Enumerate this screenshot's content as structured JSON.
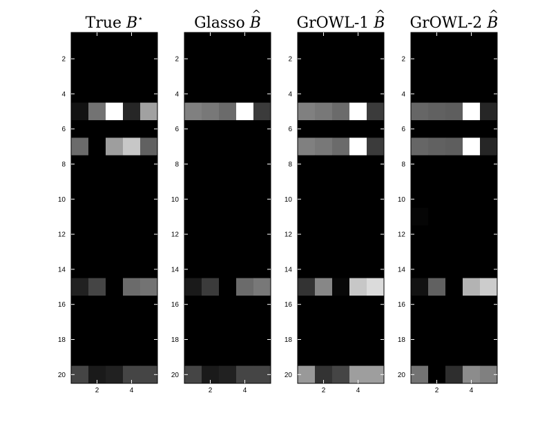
{
  "chart_data": [
    {
      "type": "heatmap",
      "title": "True B*",
      "title_text": "True ",
      "title_symbol": "B",
      "title_mark": "⋆",
      "title_mark_kind": "superscript",
      "xlim": [
        0.5,
        5.5
      ],
      "ylim": [
        20.5,
        0.5
      ],
      "x_ticks": [
        2,
        4
      ],
      "y_ticks": [
        2,
        4,
        6,
        8,
        10,
        12,
        14,
        16,
        18,
        20
      ],
      "colormap": "gray",
      "rows": 20,
      "cols": 5,
      "values": [
        [
          0,
          0,
          0,
          0,
          0
        ],
        [
          0,
          0,
          0,
          0,
          0
        ],
        [
          0,
          0,
          0,
          0,
          0
        ],
        [
          0,
          0,
          0,
          0,
          0
        ],
        [
          0.07,
          0.45,
          1.0,
          0.15,
          0.63
        ],
        [
          0,
          0,
          0,
          0,
          0
        ],
        [
          0.42,
          0.0,
          0.62,
          0.78,
          0.38
        ],
        [
          0,
          0,
          0,
          0,
          0
        ],
        [
          0,
          0,
          0,
          0,
          0
        ],
        [
          0,
          0,
          0,
          0,
          0
        ],
        [
          0,
          0,
          0,
          0,
          0
        ],
        [
          0,
          0,
          0,
          0,
          0
        ],
        [
          0,
          0,
          0,
          0,
          0
        ],
        [
          0,
          0,
          0,
          0,
          0
        ],
        [
          0.13,
          0.27,
          0.0,
          0.42,
          0.45
        ],
        [
          0,
          0,
          0,
          0,
          0
        ],
        [
          0,
          0,
          0,
          0,
          0
        ],
        [
          0,
          0,
          0,
          0,
          0
        ],
        [
          0,
          0,
          0,
          0,
          0
        ],
        [
          0.27,
          0.1,
          0.13,
          0.27,
          0.27
        ]
      ]
    },
    {
      "type": "heatmap",
      "title": "Glasso B̂",
      "title_text": "Glasso ",
      "title_symbol": "B",
      "title_mark": "^",
      "title_mark_kind": "hat",
      "xlim": [
        0.5,
        5.5
      ],
      "ylim": [
        20.5,
        0.5
      ],
      "x_ticks": [
        2,
        4
      ],
      "y_ticks": [
        2,
        4,
        6,
        8,
        10,
        12,
        14,
        16,
        18,
        20
      ],
      "colormap": "gray",
      "rows": 20,
      "cols": 5,
      "values": [
        [
          0,
          0,
          0,
          0,
          0
        ],
        [
          0,
          0,
          0,
          0,
          0
        ],
        [
          0,
          0,
          0,
          0,
          0
        ],
        [
          0,
          0,
          0,
          0,
          0
        ],
        [
          0.5,
          0.47,
          0.42,
          1.0,
          0.23
        ],
        [
          0,
          0,
          0,
          0,
          0
        ],
        [
          0,
          0,
          0,
          0,
          0
        ],
        [
          0,
          0,
          0,
          0,
          0
        ],
        [
          0,
          0,
          0,
          0,
          0
        ],
        [
          0,
          0,
          0,
          0,
          0
        ],
        [
          0,
          0,
          0,
          0,
          0
        ],
        [
          0,
          0,
          0,
          0,
          0
        ],
        [
          0,
          0,
          0,
          0,
          0
        ],
        [
          0,
          0,
          0,
          0,
          0
        ],
        [
          0.1,
          0.23,
          0.0,
          0.42,
          0.47
        ],
        [
          0,
          0,
          0,
          0,
          0
        ],
        [
          0,
          0,
          0,
          0,
          0
        ],
        [
          0,
          0,
          0,
          0,
          0
        ],
        [
          0,
          0,
          0,
          0,
          0
        ],
        [
          0.27,
          0.1,
          0.13,
          0.27,
          0.27
        ]
      ]
    },
    {
      "type": "heatmap",
      "title": "GrOWL-1 B̂",
      "title_text": "GrOWL-1 ",
      "title_symbol": "B",
      "title_mark": "^",
      "title_mark_kind": "hat",
      "xlim": [
        0.5,
        5.5
      ],
      "ylim": [
        20.5,
        0.5
      ],
      "x_ticks": [
        2,
        4
      ],
      "y_ticks": [
        2,
        4,
        6,
        8,
        10,
        12,
        14,
        16,
        18,
        20
      ],
      "colormap": "gray",
      "rows": 20,
      "cols": 5,
      "values": [
        [
          0,
          0,
          0,
          0,
          0
        ],
        [
          0,
          0,
          0,
          0,
          0
        ],
        [
          0,
          0,
          0,
          0,
          0
        ],
        [
          0,
          0,
          0,
          0,
          0
        ],
        [
          0.5,
          0.47,
          0.42,
          1.0,
          0.23
        ],
        [
          0,
          0,
          0,
          0,
          0
        ],
        [
          0.5,
          0.47,
          0.42,
          1.0,
          0.23
        ],
        [
          0,
          0,
          0,
          0,
          0
        ],
        [
          0,
          0,
          0,
          0,
          0
        ],
        [
          0,
          0,
          0,
          0,
          0
        ],
        [
          0,
          0,
          0,
          0,
          0
        ],
        [
          0,
          0,
          0,
          0,
          0
        ],
        [
          0,
          0,
          0,
          0,
          0
        ],
        [
          0,
          0,
          0,
          0,
          0
        ],
        [
          0.2,
          0.53,
          0.03,
          0.78,
          0.86
        ],
        [
          0,
          0,
          0,
          0,
          0
        ],
        [
          0,
          0,
          0,
          0,
          0
        ],
        [
          0,
          0,
          0,
          0,
          0
        ],
        [
          0,
          0,
          0,
          0,
          0
        ],
        [
          0.6,
          0.2,
          0.27,
          0.62,
          0.62
        ]
      ]
    },
    {
      "type": "heatmap",
      "title": "GrOWL-2 B̂",
      "title_text": "GrOWL-2 ",
      "title_symbol": "B",
      "title_mark": "^",
      "title_mark_kind": "hat",
      "xlim": [
        0.5,
        5.5
      ],
      "ylim": [
        20.5,
        0.5
      ],
      "x_ticks": [
        2,
        4
      ],
      "y_ticks": [
        2,
        4,
        6,
        8,
        10,
        12,
        14,
        16,
        18,
        20
      ],
      "colormap": "gray",
      "rows": 20,
      "cols": 5,
      "values": [
        [
          0,
          0,
          0,
          0,
          0
        ],
        [
          0,
          0,
          0,
          0,
          0
        ],
        [
          0,
          0,
          0,
          0,
          0
        ],
        [
          0,
          0,
          0,
          0,
          0
        ],
        [
          0.4,
          0.38,
          0.37,
          1.0,
          0.15
        ],
        [
          0,
          0,
          0,
          0,
          0
        ],
        [
          0.4,
          0.38,
          0.37,
          1.0,
          0.15
        ],
        [
          0,
          0,
          0,
          0,
          0
        ],
        [
          0,
          0,
          0,
          0,
          0
        ],
        [
          0,
          0,
          0,
          0,
          0
        ],
        [
          0.02,
          0,
          0,
          0,
          0
        ],
        [
          0,
          0,
          0,
          0,
          0
        ],
        [
          0,
          0,
          0,
          0,
          0
        ],
        [
          0,
          0,
          0,
          0,
          0
        ],
        [
          0.07,
          0.38,
          0.0,
          0.7,
          0.8
        ],
        [
          0,
          0,
          0,
          0,
          0
        ],
        [
          0,
          0,
          0,
          0,
          0
        ],
        [
          0,
          0,
          0,
          0,
          0
        ],
        [
          0,
          0,
          0,
          0,
          0
        ],
        [
          0.45,
          0.0,
          0.18,
          0.55,
          0.5
        ]
      ]
    }
  ]
}
